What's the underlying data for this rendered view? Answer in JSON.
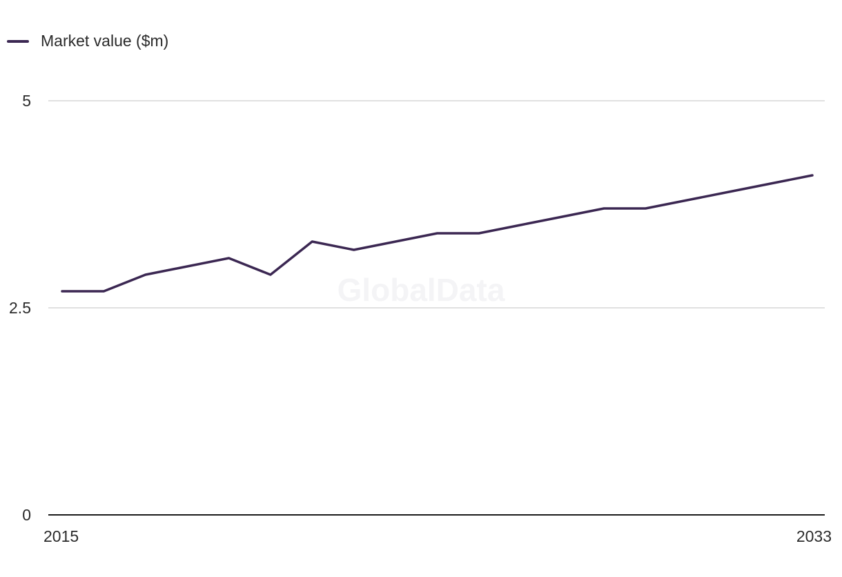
{
  "chart_data": {
    "type": "line",
    "title": "",
    "xlabel": "",
    "ylabel": "",
    "x": [
      2015,
      2016,
      2017,
      2018,
      2019,
      2020,
      2021,
      2022,
      2023,
      2024,
      2025,
      2026,
      2027,
      2028,
      2029,
      2030,
      2031,
      2032,
      2033
    ],
    "series": [
      {
        "name": "Market value ($m)",
        "color": "#3b2752",
        "values": [
          2.7,
          2.7,
          2.9,
          3.0,
          3.1,
          2.9,
          3.3,
          3.2,
          3.3,
          3.4,
          3.4,
          3.5,
          3.6,
          3.7,
          3.7,
          3.8,
          3.9,
          4.0,
          4.1
        ]
      }
    ],
    "ylim": [
      0,
      5
    ],
    "xlim": [
      2015,
      2033
    ],
    "y_ticks": [
      "0",
      "2.5",
      "5"
    ],
    "x_tick_labels": [
      "2015",
      "2033"
    ],
    "grid": true,
    "legend_position": "top-left",
    "watermark": "GlobalData"
  }
}
